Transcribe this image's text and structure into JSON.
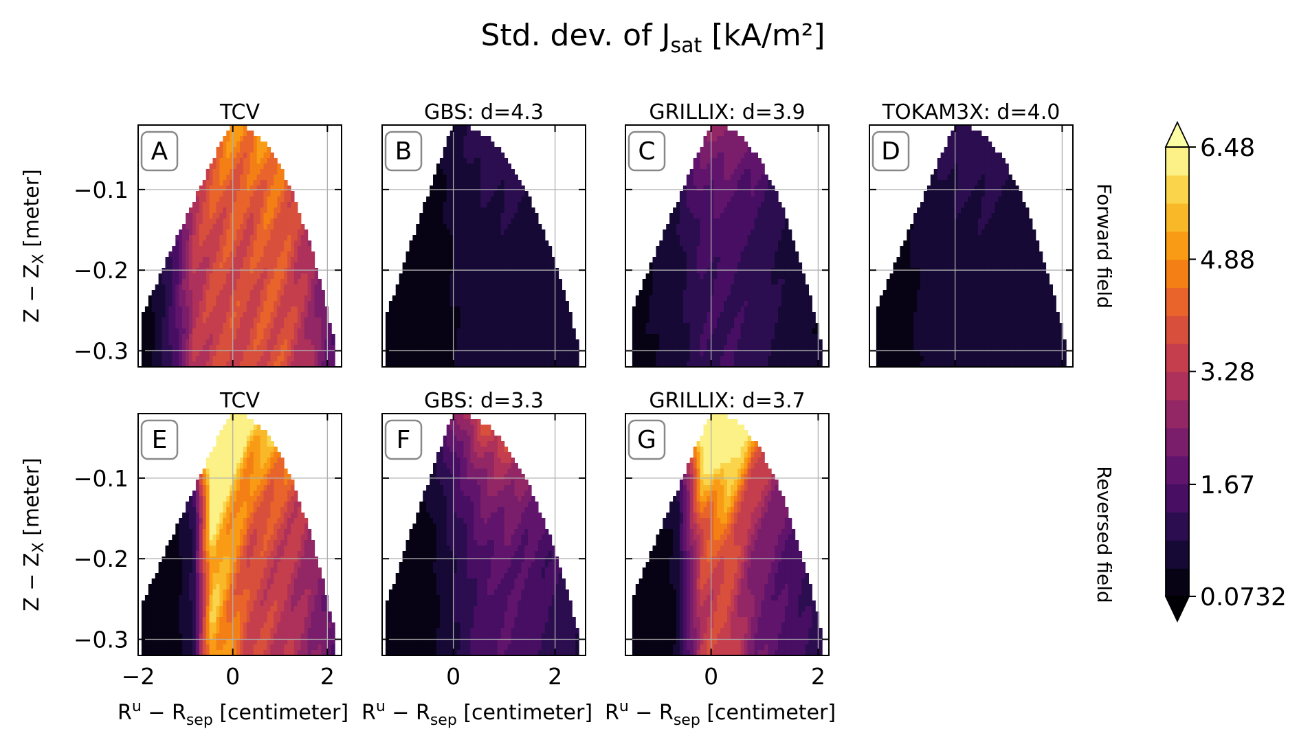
{
  "chart_data": {
    "type": "heatmap",
    "title": "Std. dev. of J",
    "title_subscript": "sat",
    "title_unit": " [kA/m²]",
    "xlabel_main": "R",
    "xlabel_sup": "u",
    "xlabel_mid": " − R",
    "xlabel_sub": "sep",
    "xlabel_sup2": "u",
    "xlabel_unit": " [centimeter]",
    "ylabel_main": "Z − Z",
    "ylabel_sub": "X",
    "ylabel_unit": " [meter]",
    "row_labels": [
      "Forward field",
      "Reversed field"
    ],
    "colorbar": {
      "ticks": [
        "6.48",
        "4.88",
        "3.28",
        "1.67",
        "0.0732"
      ],
      "tick_values": [
        6.48,
        4.88,
        3.28,
        1.67,
        0.0732
      ],
      "min": 0.0732,
      "max": 6.48,
      "colormap": "inferno",
      "extend": "both"
    },
    "ylim": [
      -0.32,
      -0.02
    ],
    "yticks": [
      "−0.1",
      "−0.2",
      "−0.3"
    ],
    "ytick_values": [
      -0.1,
      -0.2,
      -0.3
    ],
    "grid": true,
    "panels": [
      {
        "id": "A",
        "title": "TCV",
        "row": 0,
        "col": 0,
        "xlim": [
          -2.0,
          2.3
        ],
        "xticks": [
          "−2",
          "0",
          "2"
        ],
        "xtick_values": [
          -2,
          0,
          2
        ],
        "profile": [
          0.2,
          0.6,
          1.6,
          3.4,
          3.9,
          4.1,
          4.0,
          4.3,
          4.1,
          3.4,
          2.4,
          1.6
        ],
        "peak_x": 0.6,
        "top_boost": 0.3
      },
      {
        "id": "B",
        "title": "GBS: d=4.3",
        "row": 0,
        "col": 1,
        "xlim": [
          -1.4,
          2.6
        ],
        "xticks": [
          "0",
          "2"
        ],
        "xtick_values": [
          0,
          2
        ],
        "profile": [
          0.15,
          0.2,
          0.3,
          0.55,
          0.75,
          0.8,
          0.75,
          0.7,
          0.6
        ],
        "peak_x": 1.0,
        "top_boost": 0.7
      },
      {
        "id": "C",
        "title": "GRILLIX: d=3.9",
        "row": 0,
        "col": 2,
        "xlim": [
          -1.6,
          2.2
        ],
        "xticks": [
          "0",
          "2"
        ],
        "xtick_values": [
          0,
          2
        ],
        "profile": [
          0.3,
          0.5,
          0.7,
          1.3,
          1.4,
          1.2,
          0.9,
          0.6,
          0.5
        ],
        "peak_x": 0.4,
        "top_boost": 1.1
      },
      {
        "id": "D",
        "title": "TOKAM3X: d=4.0",
        "row": 0,
        "col": 3,
        "xlim": [
          -1.6,
          2.2
        ],
        "xticks": [],
        "xtick_values": [],
        "profile": [
          0.2,
          0.3,
          0.55,
          0.75,
          0.8,
          0.8,
          0.7,
          0.6,
          0.5
        ],
        "peak_x": 1.2,
        "top_boost": 0.6
      },
      {
        "id": "E",
        "title": "TCV",
        "row": 1,
        "col": 0,
        "xlim": [
          -2.0,
          2.3
        ],
        "xticks": [
          "−2",
          "0",
          "2"
        ],
        "xtick_values": [
          -2,
          0,
          2
        ],
        "profile": [
          0.1,
          0.2,
          0.3,
          1.0,
          6.0,
          5.0,
          4.0,
          3.8,
          3.5,
          3.0,
          2.4,
          1.5
        ],
        "peak_x": 0.1,
        "top_boost": 0.8
      },
      {
        "id": "F",
        "title": "GBS: d=3.3",
        "row": 1,
        "col": 1,
        "xlim": [
          -1.4,
          2.6
        ],
        "xticks": [
          "0",
          "2"
        ],
        "xtick_values": [
          0,
          2
        ],
        "profile": [
          0.1,
          0.2,
          0.4,
          1.0,
          1.6,
          1.8,
          1.5,
          1.2,
          0.9
        ],
        "peak_x": 1.0,
        "top_boost": 1.8
      },
      {
        "id": "G",
        "title": "GRILLIX: d=3.7",
        "row": 1,
        "col": 2,
        "xlim": [
          -1.6,
          2.2
        ],
        "xticks": [
          "0",
          "2"
        ],
        "xtick_values": [
          0,
          2
        ],
        "profile": [
          0.2,
          0.3,
          0.5,
          3.6,
          4.0,
          2.5,
          1.8,
          1.4,
          1.0
        ],
        "peak_x": 0.1,
        "top_boost": 1.6
      }
    ]
  }
}
